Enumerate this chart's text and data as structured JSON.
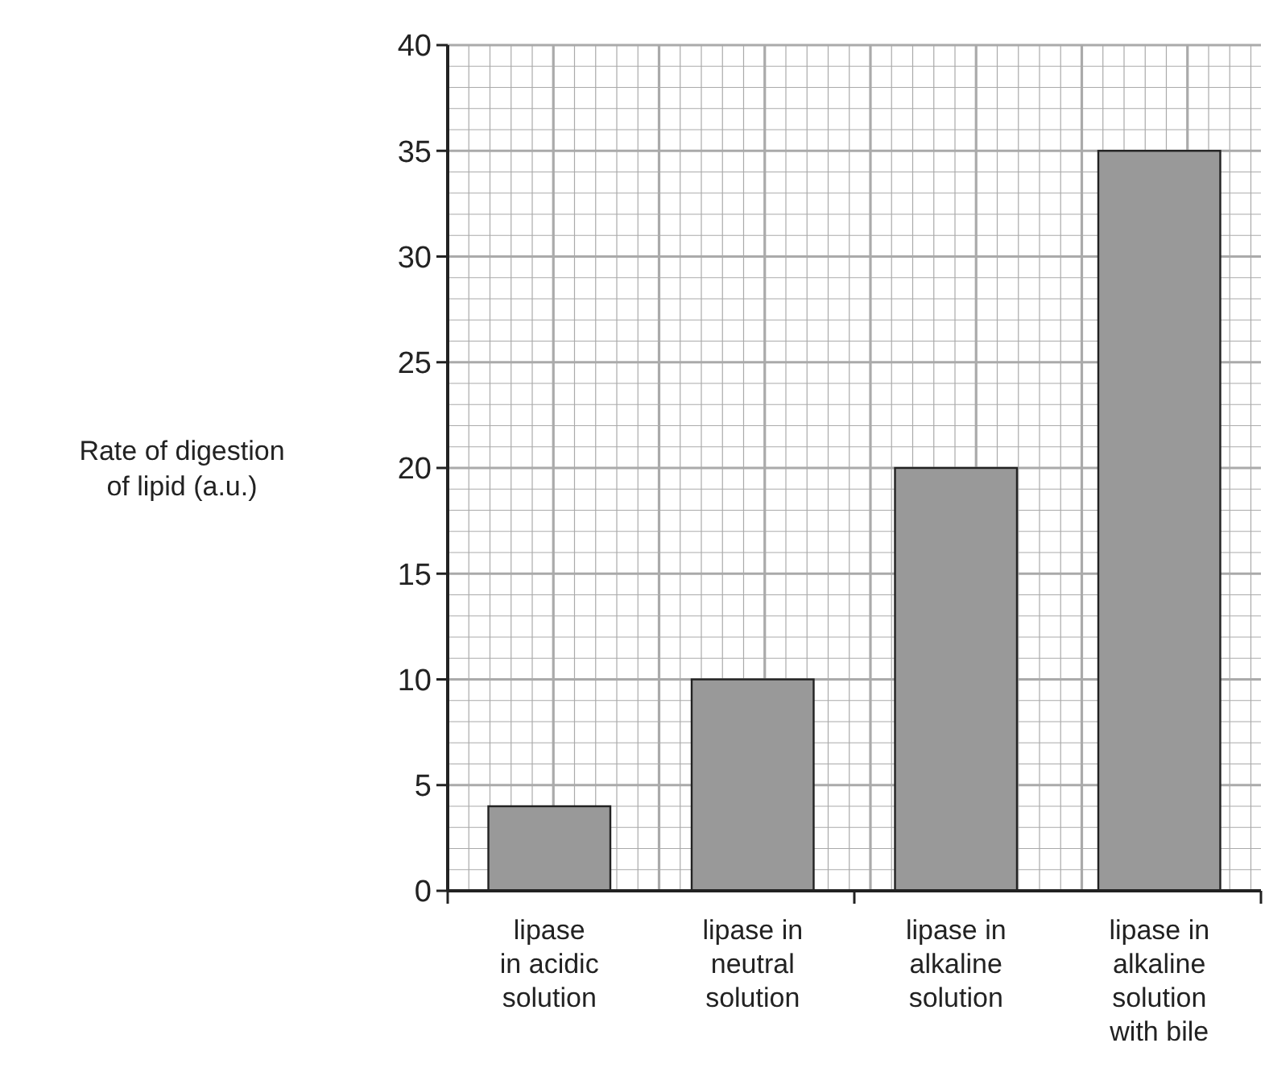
{
  "chart_data": {
    "type": "bar",
    "ylabel": "Rate of digestion\nof lipid (a.u.)",
    "categories": [
      "lipase\nin acidic\nsolution",
      "lipase in\nneutral\nsolution",
      "lipase in\nalkaline\nsolution",
      "lipase in\nalkaline\nsolution\nwith bile"
    ],
    "values": [
      4,
      10,
      20,
      35
    ],
    "color": "#999999",
    "ylim": [
      0,
      40
    ],
    "yticks": [
      0,
      5,
      10,
      15,
      20,
      25,
      30,
      35,
      40
    ],
    "grid": true
  }
}
